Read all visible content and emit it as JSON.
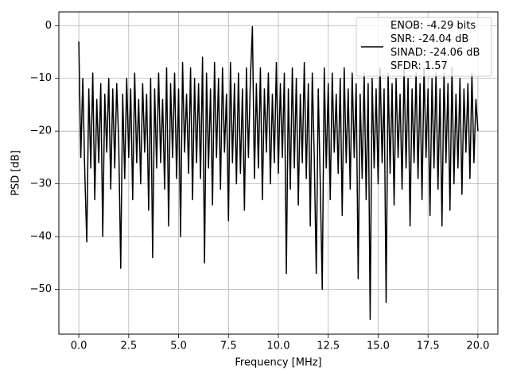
{
  "chart_data": {
    "type": "line",
    "xlabel": "Frequency [MHz]",
    "ylabel": "PSD [dB]",
    "x": [
      0,
      0.1,
      0.2,
      0.3,
      0.4,
      0.5,
      0.6,
      0.7,
      0.8,
      0.9,
      1,
      1.1,
      1.2,
      1.3,
      1.4,
      1.5,
      1.6,
      1.7,
      1.8,
      1.9,
      2,
      2.1,
      2.2,
      2.3,
      2.4,
      2.5,
      2.6,
      2.7,
      2.8,
      2.9,
      3,
      3.1,
      3.2,
      3.3,
      3.4,
      3.5,
      3.6,
      3.7,
      3.8,
      3.9,
      4,
      4.1,
      4.2,
      4.3,
      4.4,
      4.5,
      4.6,
      4.7,
      4.8,
      4.9,
      5,
      5.1,
      5.2,
      5.3,
      5.4,
      5.5,
      5.6,
      5.7,
      5.8,
      5.9,
      6,
      6.1,
      6.2,
      6.3,
      6.4,
      6.5,
      6.6,
      6.7,
      6.8,
      6.9,
      7,
      7.1,
      7.2,
      7.3,
      7.4,
      7.5,
      7.6,
      7.7,
      7.8,
      7.9,
      8,
      8.1,
      8.2,
      8.3,
      8.4,
      8.5,
      8.6,
      8.7,
      8.8,
      8.9,
      9,
      9.1,
      9.2,
      9.3,
      9.4,
      9.5,
      9.6,
      9.7,
      9.8,
      9.9,
      10,
      10.1,
      10.2,
      10.3,
      10.4,
      10.5,
      10.6,
      10.7,
      10.8,
      10.9,
      11,
      11.1,
      11.2,
      11.3,
      11.4,
      11.5,
      11.6,
      11.7,
      11.8,
      11.9,
      12,
      12.1,
      12.2,
      12.3,
      12.4,
      12.5,
      12.6,
      12.7,
      12.8,
      12.9,
      13,
      13.1,
      13.2,
      13.3,
      13.4,
      13.5,
      13.6,
      13.7,
      13.8,
      13.9,
      14,
      14.1,
      14.2,
      14.3,
      14.4,
      14.5,
      14.6,
      14.7,
      14.8,
      14.9,
      15,
      15.1,
      15.2,
      15.3,
      15.4,
      15.5,
      15.6,
      15.7,
      15.8,
      15.9,
      16,
      16.1,
      16.2,
      16.3,
      16.4,
      16.5,
      16.6,
      16.7,
      16.8,
      16.9,
      17,
      17.1,
      17.2,
      17.3,
      17.4,
      17.5,
      17.6,
      17.7,
      17.8,
      17.9,
      18,
      18.1,
      18.2,
      18.3,
      18.4,
      18.5,
      18.6,
      18.7,
      18.8,
      18.9,
      19,
      19.1,
      19.2,
      19.3,
      19.4,
      19.5,
      19.6,
      19.7,
      19.8,
      19.9,
      20
    ],
    "series": [
      {
        "name": "ENOB: -4.29 bits\nSNR: -24.04 dB\nSINAD: -24.06 dB\nSFDR: 1.57",
        "color": "#000000",
        "values": [
          -3,
          -25,
          -10,
          -28,
          -41,
          -12,
          -27,
          -9,
          -33,
          -14,
          -26,
          -11,
          -40,
          -13,
          -24,
          -10,
          -31,
          -12,
          -27,
          -11,
          -22,
          -46,
          -13,
          -29,
          -10,
          -25,
          -12,
          -33,
          -9,
          -26,
          -14,
          -30,
          -11,
          -24,
          -13,
          -35,
          -10,
          -44,
          -12,
          -27,
          -9,
          -26,
          -14,
          -31,
          -8,
          -38,
          -11,
          -25,
          -9,
          -29,
          -12,
          -40,
          -7,
          -24,
          -13,
          -28,
          -8,
          -33,
          -10,
          -26,
          -11,
          -29,
          -6,
          -45,
          -9,
          -27,
          -12,
          -34,
          -7,
          -25,
          -10,
          -31,
          -8,
          -24,
          -13,
          -37,
          -7,
          -26,
          -11,
          -30,
          -9,
          -28,
          -12,
          -35,
          -8,
          -25,
          -10,
          -0.2,
          -29,
          -11,
          -27,
          -8,
          -33,
          -12,
          -24,
          -9,
          -30,
          -13,
          -26,
          -7,
          -28,
          -11,
          -25,
          -9,
          -47,
          -12,
          -31,
          -8,
          -27,
          -10,
          -34,
          -13,
          -26,
          -7,
          -29,
          -11,
          -38,
          -9,
          -25,
          -47,
          -12,
          -30,
          -50,
          -8,
          -27,
          -11,
          -33,
          -9,
          -24,
          -13,
          -28,
          -10,
          -36,
          -8,
          -26,
          -12,
          -31,
          -9,
          -25,
          -11,
          -48,
          -13,
          -29,
          -9,
          -33,
          -11,
          -55.7,
          -10,
          -27,
          -12,
          -30,
          -8,
          -26,
          -12,
          -52.5,
          -9,
          -28,
          -11,
          -34,
          -10,
          -25,
          -13,
          -31,
          -8,
          -27,
          -10,
          -38,
          -12,
          -26,
          -9,
          -29,
          -11,
          -33,
          -8,
          -25,
          -12,
          -36,
          -10,
          -27,
          -9,
          -31,
          -12,
          -38,
          -9,
          -26,
          -11,
          -35,
          -8,
          -30,
          -13,
          -27,
          -10,
          -32,
          -12,
          -24,
          -11,
          -29,
          -9,
          -26,
          -14,
          -20
        ]
      }
    ],
    "xlim": [
      -1,
      21
    ],
    "ylim": [
      -58.5,
      2.6
    ],
    "xticks": [
      {
        "value": 0,
        "label": "0.0"
      },
      {
        "value": 2.5,
        "label": "2.5"
      },
      {
        "value": 5,
        "label": "5.0"
      },
      {
        "value": 7.5,
        "label": "7.5"
      },
      {
        "value": 10,
        "label": "10.0"
      },
      {
        "value": 12.5,
        "label": "12.5"
      },
      {
        "value": 15,
        "label": "15.0"
      },
      {
        "value": 17.5,
        "label": "17.5"
      },
      {
        "value": 20,
        "label": "20.0"
      }
    ],
    "yticks": [
      0,
      {
        "value": -10,
        "label": "−10"
      },
      {
        "value": -20,
        "label": "−20"
      },
      {
        "value": -30,
        "label": "−30"
      },
      {
        "value": -40,
        "label": "−40"
      },
      {
        "value": -50,
        "label": "−50"
      }
    ],
    "grid": true,
    "legend": "upper right"
  }
}
